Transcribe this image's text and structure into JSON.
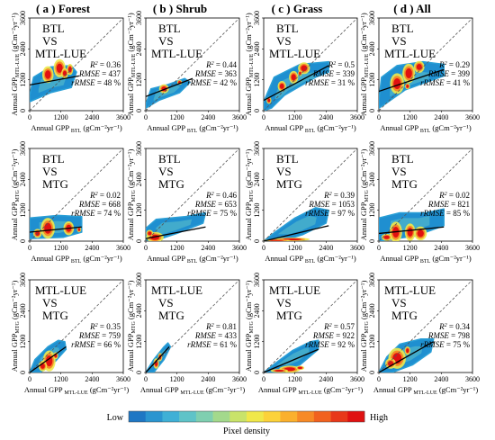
{
  "figure": {
    "legend": {
      "low": "Low",
      "high": "High",
      "title": "Pixel density",
      "colors": [
        "#1f77c4",
        "#2b95d0",
        "#3fb0d6",
        "#5fc3c8",
        "#7fcfb0",
        "#a3d98c",
        "#c9e36a",
        "#f0e84a",
        "#fcd23a",
        "#fbb02d",
        "#f78a26",
        "#f1621f",
        "#e8381a",
        "#e01111"
      ]
    },
    "columns": [
      {
        "label": "( a )",
        "name": "Forest"
      },
      {
        "label": "( b )",
        "name": "Shrub"
      },
      {
        "label": "( c )",
        "name": "Grass"
      },
      {
        "label": "( d )",
        "name": "All"
      }
    ],
    "rows": [
      {
        "panel_text": [
          "BTL",
          "VS",
          "MTL-LUE"
        ],
        "ylabel_main": "Annual GPP",
        "ylabel_sub": "MTL-LUE",
        "ylabel_units": "(gCm⁻²yr⁻¹)",
        "xlabel_main": "Annual GPP",
        "xlabel_sub": "BTL",
        "xlabel_units": "(gCm⁻²yr⁻¹)"
      },
      {
        "panel_text": [
          "BTL",
          "VS",
          "MTG"
        ],
        "ylabel_main": "Annual GPP",
        "ylabel_sub": "MTG",
        "ylabel_units": "(gCm⁻²yr⁻¹)",
        "xlabel_main": "Annual GPP",
        "xlabel_sub": "BTL",
        "xlabel_units": "(gCm⁻²yr⁻¹)"
      },
      {
        "panel_text": [
          "MTL-LUE",
          "VS",
          "MTG"
        ],
        "ylabel_main": "Annual GPP",
        "ylabel_sub": "MTG",
        "ylabel_units": "(gCm⁻²yr⁻¹)",
        "xlabel_main": "Annual GPP",
        "xlabel_sub": "MTL-LUE",
        "xlabel_units": "(gCm⁻²yr⁻¹)"
      }
    ]
  },
  "chart_data": {
    "type": "heatmap",
    "subtype": "density scatter with 1:1 dashed line and fitted regression line",
    "xlim": [
      0,
      3600
    ],
    "ylim": [
      0,
      3600
    ],
    "ticks": [
      0,
      1200,
      2400,
      3600
    ],
    "panels": [
      {
        "row": 0,
        "col": 0,
        "r2": "0.36",
        "rmse": "437",
        "rrmse": "48 %",
        "cloud": [
          [
            0,
            600
          ],
          [
            150,
            1300
          ],
          [
            800,
            1700
          ],
          [
            1600,
            1750
          ],
          [
            1800,
            1500
          ],
          [
            1600,
            900
          ],
          [
            800,
            700
          ],
          [
            0,
            350
          ]
        ],
        "hot": [
          [
            700,
            1400,
            160,
            240
          ],
          [
            1150,
            1650,
            170,
            260
          ],
          [
            1550,
            1600,
            90,
            160
          ],
          [
            1350,
            1450,
            100,
            150
          ]
        ],
        "fit": [
          [
            0,
            1000
          ],
          [
            1900,
            1350
          ]
        ]
      },
      {
        "row": 0,
        "col": 1,
        "r2": "0.44",
        "rmse": "363",
        "rrmse": "42 %",
        "cloud": [
          [
            0,
            250
          ],
          [
            200,
            850
          ],
          [
            800,
            1000
          ],
          [
            1500,
            1250
          ],
          [
            1700,
            1100
          ],
          [
            1300,
            700
          ],
          [
            500,
            400
          ],
          [
            0,
            100
          ]
        ],
        "hot": [
          [
            700,
            850,
            140,
            130
          ],
          [
            1300,
            1100,
            70,
            70
          ]
        ],
        "fit": [
          [
            0,
            550
          ],
          [
            1800,
            1250
          ]
        ]
      },
      {
        "row": 0,
        "col": 2,
        "r2": "0.5",
        "rmse": "339",
        "rrmse": "31 %",
        "cloud": [
          [
            0,
            350
          ],
          [
            400,
            1300
          ],
          [
            1400,
            1800
          ],
          [
            2500,
            1900
          ],
          [
            2500,
            1500
          ],
          [
            2000,
            1300
          ],
          [
            1400,
            950
          ],
          [
            800,
            600
          ],
          [
            300,
            100
          ],
          [
            0,
            0
          ]
        ],
        "hot": [
          [
            700,
            950,
            120,
            150
          ],
          [
            1150,
            1300,
            130,
            180
          ],
          [
            1550,
            1650,
            170,
            170
          ],
          [
            1400,
            1450,
            60,
            80
          ],
          [
            200,
            400,
            70,
            100
          ]
        ],
        "fit": [
          [
            0,
            400
          ],
          [
            2500,
            1750
          ]
        ]
      },
      {
        "row": 0,
        "col": 3,
        "r2": "0.29",
        "rmse": "399",
        "rrmse": "41 %",
        "cloud": [
          [
            0,
            400
          ],
          [
            100,
            1300
          ],
          [
            700,
            1750
          ],
          [
            1700,
            1900
          ],
          [
            2500,
            1800
          ],
          [
            2500,
            1350
          ],
          [
            1800,
            1100
          ],
          [
            1000,
            800
          ],
          [
            300,
            300
          ],
          [
            0,
            100
          ]
        ],
        "hot": [
          [
            700,
            1050,
            200,
            300
          ],
          [
            1150,
            1450,
            180,
            280
          ],
          [
            1550,
            1700,
            150,
            170
          ],
          [
            1100,
            950,
            70,
            90
          ]
        ],
        "fit": [
          [
            0,
            750
          ],
          [
            2500,
            1600
          ]
        ]
      },
      {
        "row": 1,
        "col": 0,
        "r2": "0.02",
        "rmse": "668",
        "rrmse": "74 %",
        "cloud": [
          [
            0,
            200
          ],
          [
            0,
            900
          ],
          [
            1100,
            1000
          ],
          [
            2000,
            950
          ],
          [
            2000,
            350
          ],
          [
            1300,
            150
          ],
          [
            0,
            100
          ]
        ],
        "hot": [
          [
            700,
            500,
            200,
            300
          ],
          [
            1500,
            500,
            150,
            200
          ],
          [
            1900,
            450,
            60,
            80
          ],
          [
            300,
            300,
            120,
            130
          ]
        ],
        "fit": [
          [
            0,
            350
          ],
          [
            2000,
            550
          ]
        ]
      },
      {
        "row": 1,
        "col": 1,
        "r2": "0.46",
        "rmse": "653",
        "rrmse": "75 %",
        "cloud": [
          [
            0,
            0
          ],
          [
            0,
            500
          ],
          [
            400,
            850
          ],
          [
            1500,
            950
          ],
          [
            2300,
            1100
          ],
          [
            2200,
            700
          ],
          [
            1200,
            300
          ],
          [
            300,
            0
          ]
        ],
        "hot": [
          [
            350,
            150,
            250,
            150
          ],
          [
            150,
            300,
            100,
            100
          ]
        ],
        "fit": [
          [
            0,
            100
          ],
          [
            2300,
            550
          ]
        ]
      },
      {
        "row": 1,
        "col": 2,
        "r2": "0.39",
        "rmse": "1053",
        "rrmse": "97 %",
        "cloud": [
          [
            0,
            0
          ],
          [
            500,
            400
          ],
          [
            1200,
            900
          ],
          [
            2000,
            1300
          ],
          [
            2500,
            1200
          ],
          [
            2400,
            700
          ],
          [
            1500,
            250
          ],
          [
            700,
            0
          ]
        ],
        "hot": [
          [
            1100,
            70,
            500,
            50
          ],
          [
            500,
            30,
            400,
            30
          ]
        ],
        "fit": [
          [
            0,
            0
          ],
          [
            2500,
            600
          ]
        ]
      },
      {
        "row": 1,
        "col": 3,
        "r2": "0.02",
        "rmse": "821",
        "rrmse": "85 %",
        "cloud": [
          [
            0,
            0
          ],
          [
            0,
            900
          ],
          [
            800,
            1100
          ],
          [
            1800,
            1100
          ],
          [
            2500,
            1250
          ],
          [
            2500,
            600
          ],
          [
            1400,
            200
          ],
          [
            0,
            0
          ]
        ],
        "hot": [
          [
            650,
            350,
            180,
            300
          ],
          [
            1200,
            350,
            150,
            250
          ],
          [
            1600,
            300,
            180,
            200
          ],
          [
            300,
            150,
            150,
            100
          ]
        ],
        "fit": [
          [
            0,
            300
          ],
          [
            2500,
            550
          ]
        ]
      },
      {
        "row": 2,
        "col": 0,
        "r2": "0.35",
        "rmse": "759",
        "rrmse": "66 %",
        "cloud": [
          [
            0,
            0
          ],
          [
            200,
            500
          ],
          [
            700,
            1000
          ],
          [
            1100,
            1250
          ],
          [
            1350,
            1200
          ],
          [
            1400,
            900
          ],
          [
            1000,
            450
          ],
          [
            400,
            0
          ]
        ],
        "hot": [
          [
            750,
            450,
            180,
            300
          ],
          [
            500,
            250,
            120,
            150
          ],
          [
            1000,
            650,
            70,
            100
          ]
        ],
        "fit": [
          [
            0,
            0
          ],
          [
            1400,
            1000
          ]
        ]
      },
      {
        "row": 2,
        "col": 1,
        "r2": "0.81",
        "rmse": "433",
        "rrmse": "61 %",
        "cloud": [
          [
            0,
            0
          ],
          [
            300,
            500
          ],
          [
            700,
            1000
          ],
          [
            850,
            1150
          ],
          [
            950,
            1000
          ],
          [
            700,
            500
          ],
          [
            300,
            0
          ]
        ],
        "hot": [
          [
            400,
            350,
            80,
            150
          ],
          [
            550,
            600,
            60,
            120
          ]
        ],
        "fit": [
          [
            0,
            0
          ],
          [
            900,
            1000
          ]
        ]
      },
      {
        "row": 2,
        "col": 2,
        "r2": "0.57",
        "rmse": "922",
        "rrmse": "92 %",
        "cloud": [
          [
            0,
            0
          ],
          [
            500,
            400
          ],
          [
            1100,
            850
          ],
          [
            1800,
            1200
          ],
          [
            2100,
            1250
          ],
          [
            2100,
            900
          ],
          [
            1400,
            300
          ],
          [
            700,
            0
          ]
        ],
        "hot": [
          [
            1000,
            130,
            300,
            100
          ],
          [
            1400,
            180,
            120,
            60
          ],
          [
            600,
            70,
            250,
            50
          ]
        ],
        "fit": [
          [
            0,
            0
          ],
          [
            2100,
            900
          ]
        ]
      },
      {
        "row": 2,
        "col": 3,
        "r2": "0.34",
        "rmse": "798",
        "rrmse": "75 %",
        "cloud": [
          [
            0,
            0
          ],
          [
            300,
            600
          ],
          [
            800,
            1100
          ],
          [
            1600,
            1300
          ],
          [
            2100,
            1300
          ],
          [
            2000,
            800
          ],
          [
            1300,
            300
          ],
          [
            500,
            0
          ]
        ],
        "hot": [
          [
            700,
            550,
            250,
            300
          ],
          [
            450,
            350,
            150,
            150
          ],
          [
            1100,
            850,
            80,
            120
          ]
        ],
        "fit": [
          [
            0,
            0
          ],
          [
            2100,
            1200
          ]
        ]
      }
    ]
  }
}
